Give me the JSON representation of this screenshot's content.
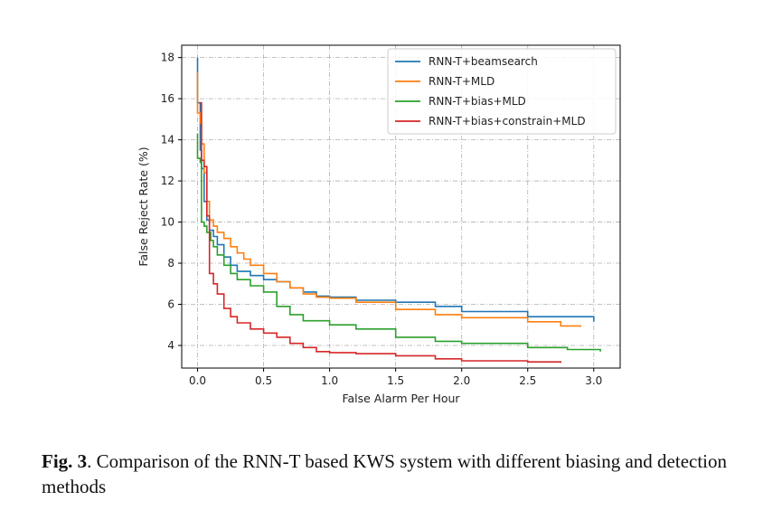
{
  "chart_data": {
    "type": "line",
    "xlabel": "False Alarm Per Hour",
    "ylabel": "False Reject Rate (%)",
    "xlim": [
      -0.12,
      3.2
    ],
    "ylim": [
      2.9,
      18.6
    ],
    "xticks": [
      0.0,
      0.5,
      1.0,
      1.5,
      2.0,
      2.5,
      3.0
    ],
    "xtick_labels": [
      "0.0",
      "0.5",
      "1.0",
      "1.5",
      "2.0",
      "2.5",
      "3.0"
    ],
    "yticks": [
      4,
      6,
      8,
      10,
      12,
      14,
      16,
      18
    ],
    "ytick_labels": [
      "4",
      "6",
      "8",
      "10",
      "12",
      "14",
      "16",
      "18"
    ],
    "grid": true,
    "legend_position": "top-right",
    "series": [
      {
        "name": "RNN-T+beamsearch",
        "color": "#1f77b4",
        "x": [
          0.0,
          0.0,
          0.02,
          0.03,
          0.05,
          0.07,
          0.09,
          0.12,
          0.15,
          0.2,
          0.25,
          0.3,
          0.4,
          0.5,
          0.6,
          0.7,
          0.8,
          0.9,
          1.0,
          1.2,
          1.5,
          1.8,
          2.0,
          2.5,
          3.0
        ],
        "y": [
          18.0,
          15.8,
          13.5,
          12.6,
          11.0,
          10.1,
          9.6,
          9.3,
          8.9,
          8.3,
          7.9,
          7.6,
          7.4,
          7.2,
          7.1,
          6.8,
          6.6,
          6.4,
          6.35,
          6.2,
          6.1,
          5.9,
          5.65,
          5.4,
          5.15
        ]
      },
      {
        "name": "RNN-T+MLD",
        "color": "#ff7f0e",
        "x": [
          0.0,
          0.0,
          0.02,
          0.03,
          0.05,
          0.07,
          0.09,
          0.12,
          0.15,
          0.2,
          0.25,
          0.3,
          0.35,
          0.4,
          0.5,
          0.6,
          0.7,
          0.8,
          0.9,
          1.0,
          1.2,
          1.5,
          1.8,
          2.0,
          2.5,
          2.75,
          2.9
        ],
        "y": [
          17.3,
          15.3,
          14.8,
          13.8,
          12.4,
          11.0,
          10.1,
          9.8,
          9.5,
          9.2,
          8.8,
          8.5,
          8.2,
          7.9,
          7.5,
          7.1,
          6.8,
          6.5,
          6.35,
          6.3,
          6.1,
          5.75,
          5.5,
          5.35,
          5.15,
          4.95,
          4.9
        ]
      },
      {
        "name": "RNN-T+bias+MLD",
        "color": "#2ca02c",
        "x": [
          0.0,
          0.0,
          0.02,
          0.03,
          0.05,
          0.07,
          0.1,
          0.12,
          0.15,
          0.2,
          0.25,
          0.3,
          0.4,
          0.5,
          0.6,
          0.7,
          0.8,
          1.0,
          1.2,
          1.5,
          1.8,
          2.0,
          2.5,
          2.8,
          3.05
        ],
        "y": [
          14.3,
          13.1,
          12.9,
          10.0,
          9.8,
          9.5,
          9.1,
          8.8,
          8.4,
          7.9,
          7.5,
          7.2,
          6.9,
          6.6,
          5.9,
          5.5,
          5.2,
          5.0,
          4.8,
          4.4,
          4.2,
          4.1,
          3.9,
          3.8,
          3.7
        ]
      },
      {
        "name": "RNN-T+bias+constrain+MLD",
        "color": "#d62728",
        "x": [
          0.02,
          0.03,
          0.05,
          0.07,
          0.09,
          0.12,
          0.15,
          0.2,
          0.25,
          0.3,
          0.4,
          0.5,
          0.6,
          0.7,
          0.8,
          0.9,
          1.0,
          1.2,
          1.5,
          1.8,
          2.0,
          2.5,
          2.75
        ],
        "y": [
          15.8,
          13.0,
          12.7,
          10.3,
          7.5,
          7.0,
          6.5,
          5.8,
          5.4,
          5.1,
          4.8,
          4.6,
          4.4,
          4.1,
          3.9,
          3.7,
          3.65,
          3.6,
          3.5,
          3.35,
          3.25,
          3.2,
          3.15
        ]
      }
    ]
  },
  "caption": {
    "fig_number": "Fig. 3",
    "text": ". Comparison of the RNN-T based KWS system with different biasing and detection methods"
  }
}
